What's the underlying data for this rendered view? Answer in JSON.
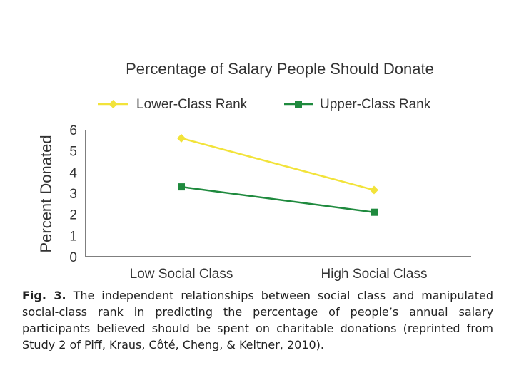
{
  "chart_data": {
    "type": "line",
    "title": "Percentage of Salary People Should Donate",
    "ylabel": "Percent Donated",
    "xlabel": "",
    "categories": [
      "Low Social Class",
      "High Social Class"
    ],
    "ylim": [
      0,
      6
    ],
    "yticks": [
      0,
      1,
      2,
      3,
      4,
      5,
      6
    ],
    "grid": false,
    "legend_position": "top",
    "series": [
      {
        "name": "Lower-Class Rank",
        "values": [
          5.6,
          3.15
        ],
        "color": "#f2e33a",
        "marker": "diamond"
      },
      {
        "name": "Upper-Class Rank",
        "values": [
          3.3,
          2.1
        ],
        "color": "#1f8a3e",
        "marker": "square"
      }
    ]
  },
  "caption": {
    "label": "Fig. 3.",
    "text": "The independent relationships between social class and manipulated social-class rank in predicting the percentage of people’s annual salary participants believed should be spent on charitable donations (reprinted from Study 2 of Piff, Kraus, Côté, Cheng, & Keltner, 2010)."
  }
}
